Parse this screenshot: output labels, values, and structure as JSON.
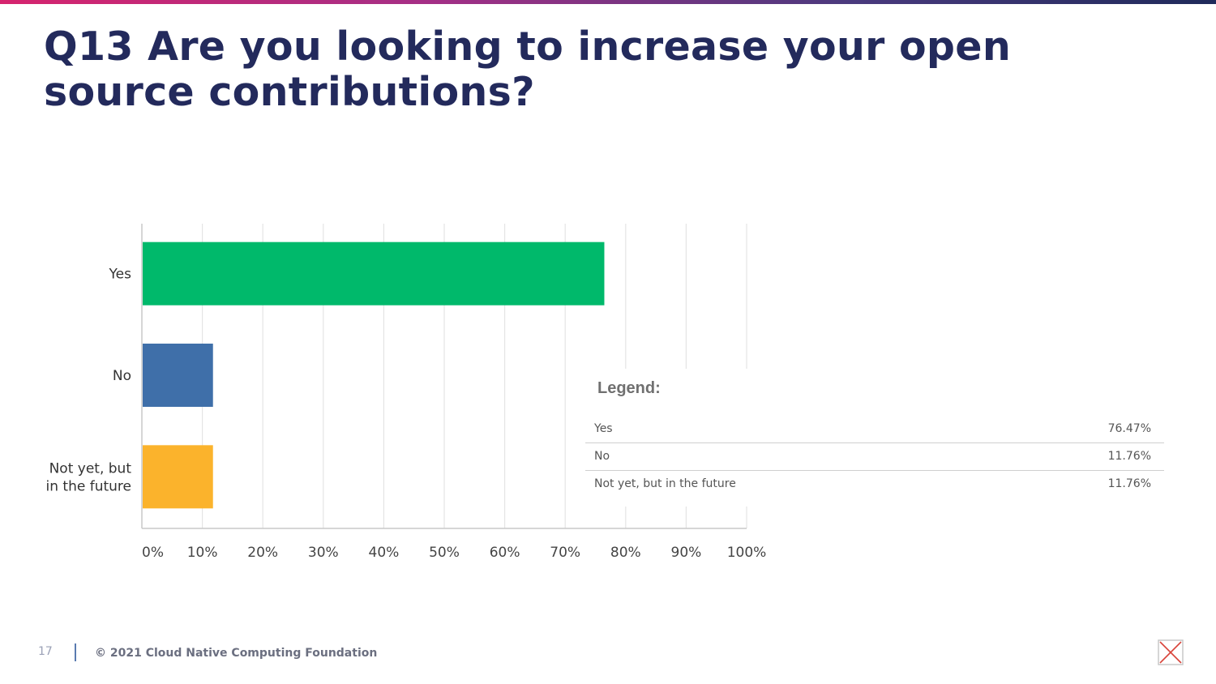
{
  "page": {
    "title": "Q13 Are you looking to increase your open source contributions?",
    "footer": {
      "page_number": "17",
      "copyright": "© 2021 Cloud Native Computing Foundation",
      "logo_icon": "cncf-logo-icon"
    }
  },
  "chart_data": {
    "type": "bar",
    "orientation": "horizontal",
    "categories": [
      "Yes",
      "No",
      "Not yet, but in the future"
    ],
    "category_tick_lines": [
      [
        "Yes"
      ],
      [
        "No"
      ],
      [
        "Not yet, but",
        "in the future"
      ]
    ],
    "values": [
      76.47,
      11.76,
      11.76
    ],
    "colors": [
      "#00b96b",
      "#3f6fa9",
      "#fbb32c"
    ],
    "xlim": [
      0,
      100
    ],
    "x_ticks": [
      "0%",
      "10%",
      "20%",
      "30%",
      "40%",
      "50%",
      "60%",
      "70%",
      "80%",
      "90%",
      "100%"
    ],
    "grid": "vertical",
    "legend": {
      "title": "Legend:",
      "placement": "bottom-right",
      "entries": [
        {
          "label": "Yes",
          "value": "76.47%"
        },
        {
          "label": "No",
          "value": "11.76%"
        },
        {
          "label": "Not yet, but in the future",
          "value": "11.76%"
        }
      ]
    }
  }
}
